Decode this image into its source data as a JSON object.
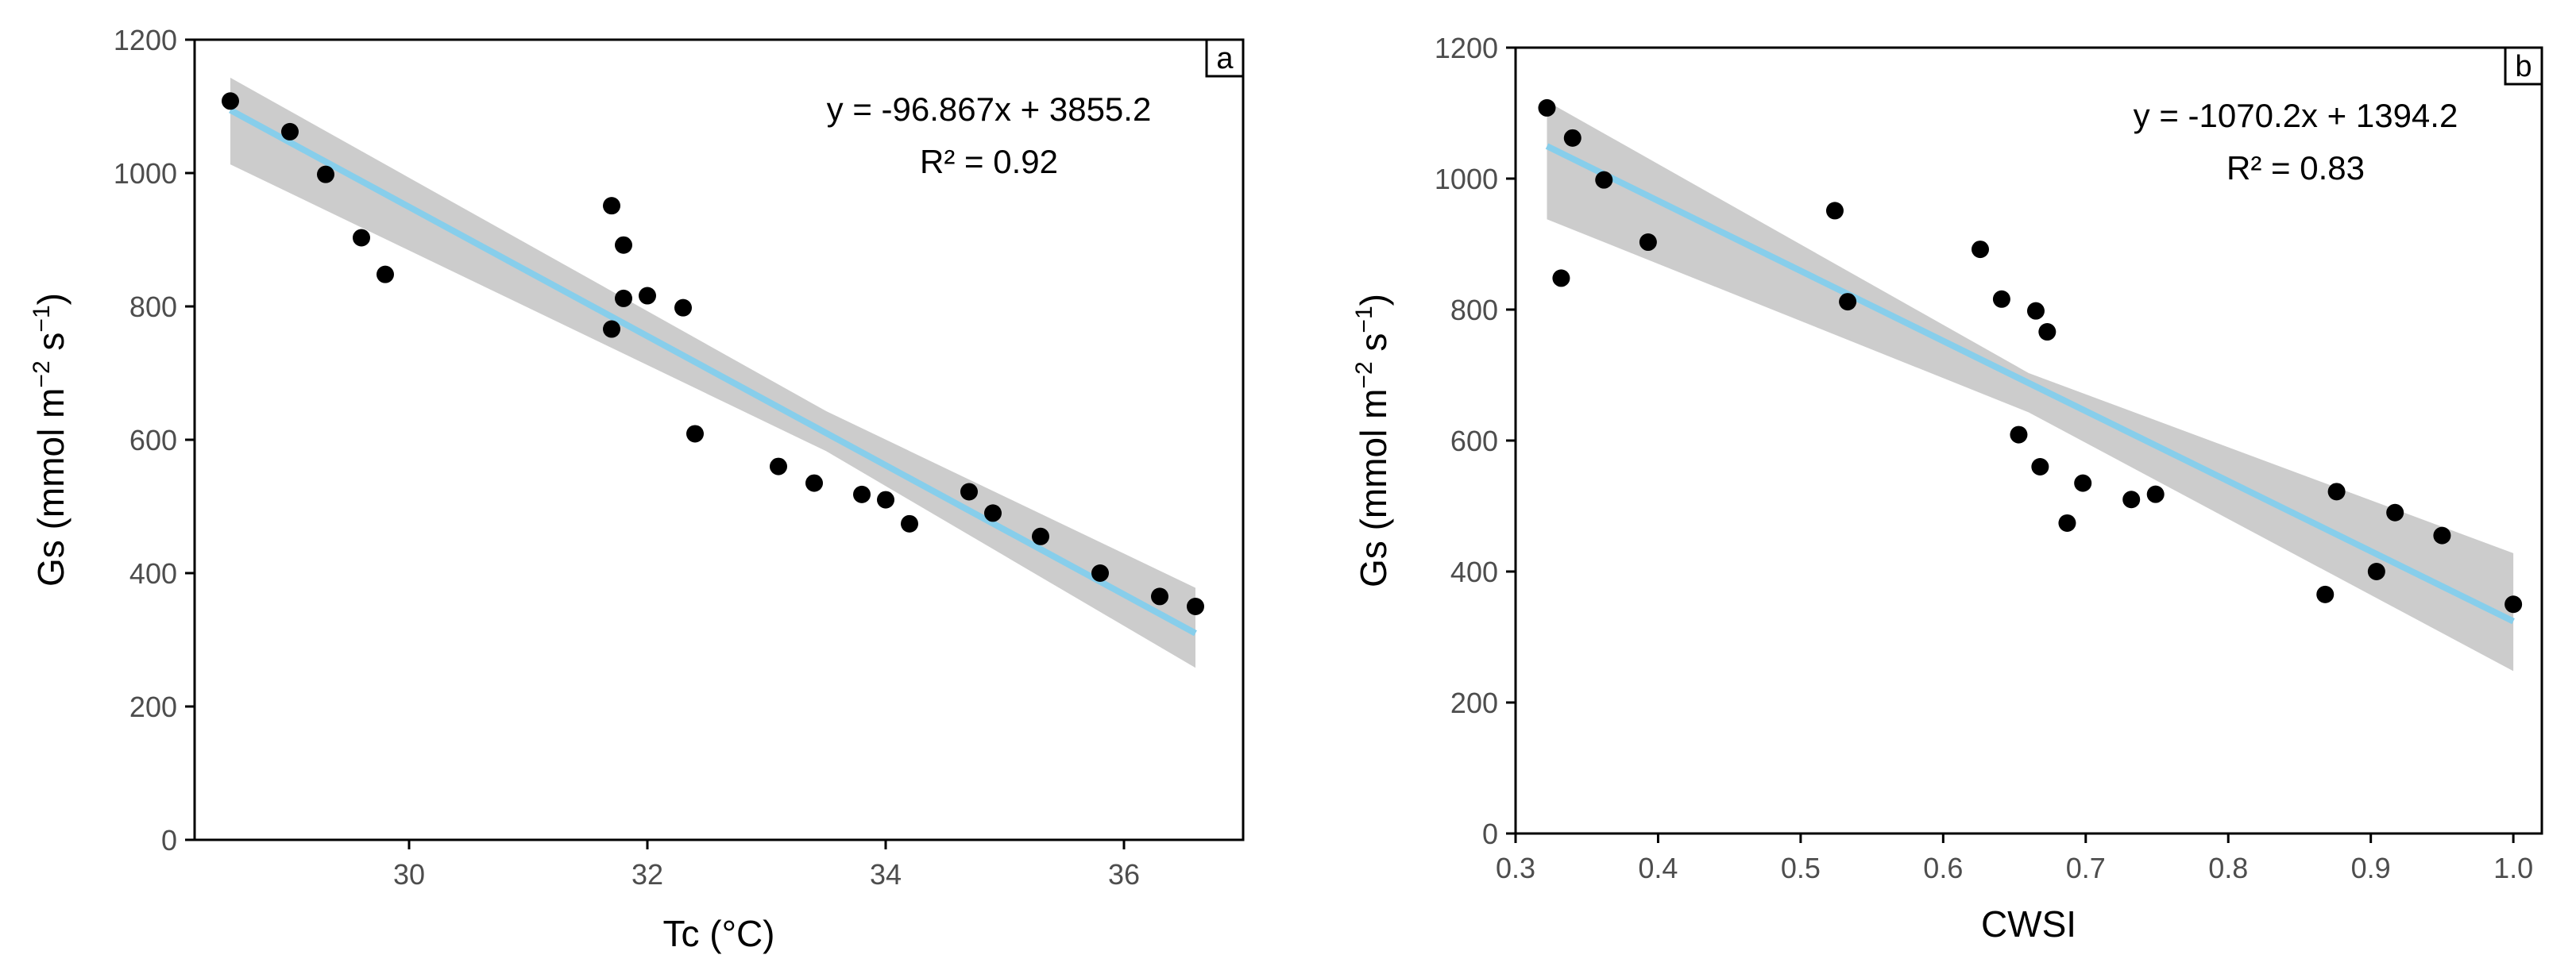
{
  "chart_data": [
    {
      "type": "scatter",
      "panel_label": "a",
      "xlabel": "Tc (°C)",
      "ylabel_main": "Gs",
      "ylabel_unit": "mmol m",
      "ylabel_exp1": "−2",
      "ylabel_s": "s",
      "ylabel_exp2": "−1",
      "xlim": [
        28.2,
        37.0
      ],
      "ylim": [
        0,
        1200
      ],
      "xticks": [
        30,
        32,
        34,
        36
      ],
      "xtick_labels": [
        "30",
        "32",
        "34",
        "36"
      ],
      "yticks": [
        0,
        200,
        400,
        600,
        800,
        1000,
        1200
      ],
      "ytick_labels": [
        "0",
        "200",
        "400",
        "600",
        "800",
        "1000",
        "1200"
      ],
      "equation": "y = -96.867x + 3855.2",
      "r2": "R² = 0.92",
      "slope": -96.867,
      "intercept": 3855.2,
      "fit_range": [
        28.5,
        36.6
      ],
      "ci_upper": [
        [
          28.5,
          1143
        ],
        [
          33.5,
          643
        ],
        [
          36.6,
          378
        ]
      ],
      "ci_lower": [
        [
          28.5,
          1013
        ],
        [
          33.5,
          583
        ],
        [
          36.6,
          258
        ]
      ],
      "points": [
        {
          "x": 28.5,
          "y": 1108
        },
        {
          "x": 29.0,
          "y": 1062
        },
        {
          "x": 29.3,
          "y": 998
        },
        {
          "x": 29.6,
          "y": 903
        },
        {
          "x": 29.8,
          "y": 848
        },
        {
          "x": 31.7,
          "y": 951
        },
        {
          "x": 31.8,
          "y": 892
        },
        {
          "x": 31.8,
          "y": 812
        },
        {
          "x": 32.0,
          "y": 816
        },
        {
          "x": 32.3,
          "y": 798
        },
        {
          "x": 31.7,
          "y": 766
        },
        {
          "x": 32.4,
          "y": 609
        },
        {
          "x": 33.1,
          "y": 560
        },
        {
          "x": 33.4,
          "y": 535
        },
        {
          "x": 33.8,
          "y": 518
        },
        {
          "x": 34.0,
          "y": 510
        },
        {
          "x": 34.2,
          "y": 474
        },
        {
          "x": 34.7,
          "y": 522
        },
        {
          "x": 34.9,
          "y": 490
        },
        {
          "x": 35.3,
          "y": 455
        },
        {
          "x": 35.8,
          "y": 400
        },
        {
          "x": 36.3,
          "y": 365
        },
        {
          "x": 36.6,
          "y": 350
        }
      ]
    },
    {
      "type": "scatter",
      "panel_label": "b",
      "xlabel": "CWSI",
      "ylabel_main": "Gs",
      "ylabel_unit": "mmol m",
      "ylabel_exp1": "−2",
      "ylabel_s": "s",
      "ylabel_exp2": "−1",
      "xlim": [
        0.3,
        1.02
      ],
      "ylim": [
        0,
        1200
      ],
      "xticks": [
        0.3,
        0.4,
        0.5,
        0.6,
        0.7,
        0.8,
        0.9,
        1.0
      ],
      "xtick_labels": [
        "0.3",
        "0.4",
        "0.5",
        "0.6",
        "0.7",
        "0.8",
        "0.9",
        "1.0"
      ],
      "yticks": [
        0,
        200,
        400,
        600,
        800,
        1000,
        1200
      ],
      "ytick_labels": [
        "0",
        "200",
        "400",
        "600",
        "800",
        "1000",
        "1200"
      ],
      "equation": "y = -1070.2x + 1394.2",
      "r2": "R² = 0.83",
      "slope": -1070.2,
      "intercept": 1394.2,
      "fit_range": [
        0.322,
        1.0
      ],
      "ci_upper": [
        [
          0.322,
          1118
        ],
        [
          0.66,
          703
        ],
        [
          1.0,
          428
        ]
      ],
      "ci_lower": [
        [
          0.322,
          938
        ],
        [
          0.66,
          643
        ],
        [
          1.0,
          248
        ]
      ],
      "points": [
        {
          "x": 0.322,
          "y": 1108
        },
        {
          "x": 0.34,
          "y": 1062
        },
        {
          "x": 0.362,
          "y": 998
        },
        {
          "x": 0.332,
          "y": 848
        },
        {
          "x": 0.393,
          "y": 903
        },
        {
          "x": 0.524,
          "y": 951
        },
        {
          "x": 0.533,
          "y": 812
        },
        {
          "x": 0.626,
          "y": 892
        },
        {
          "x": 0.641,
          "y": 816
        },
        {
          "x": 0.665,
          "y": 798
        },
        {
          "x": 0.673,
          "y": 766
        },
        {
          "x": 0.653,
          "y": 609
        },
        {
          "x": 0.668,
          "y": 560
        },
        {
          "x": 0.698,
          "y": 535
        },
        {
          "x": 0.687,
          "y": 474
        },
        {
          "x": 0.732,
          "y": 510
        },
        {
          "x": 0.749,
          "y": 518
        },
        {
          "x": 0.876,
          "y": 522
        },
        {
          "x": 0.917,
          "y": 490
        },
        {
          "x": 0.95,
          "y": 455
        },
        {
          "x": 0.904,
          "y": 400
        },
        {
          "x": 0.868,
          "y": 365
        },
        {
          "x": 1.0,
          "y": 350
        }
      ]
    }
  ],
  "colors": {
    "points": "#000000",
    "fit_line": "#87ceeb",
    "ci_band": "#cccccc",
    "axes": "#000000",
    "tick_text": "#4d4d4d"
  }
}
